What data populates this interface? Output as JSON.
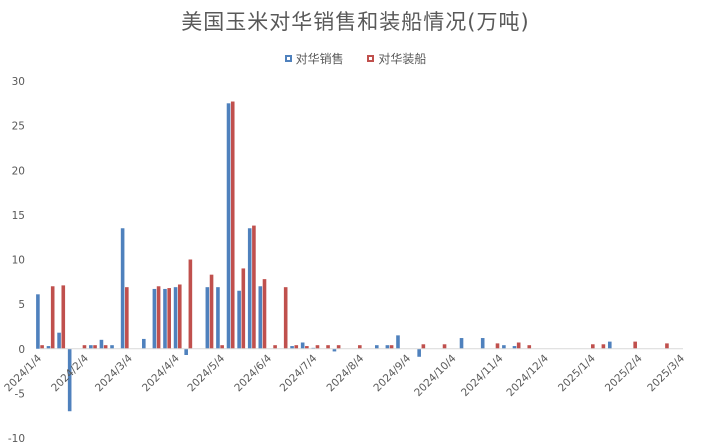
{
  "chart_data": {
    "type": "bar",
    "title": "美国玉米对华销售和装船情况(万吨)",
    "xlabel": "",
    "ylabel": "",
    "ylim": [
      -10,
      30
    ],
    "yticks": [
      -10,
      -5,
      0,
      5,
      10,
      15,
      20,
      25,
      30
    ],
    "xlim": [
      "2024-01-04",
      "2025-03-04"
    ],
    "xtick_labels": [
      "2024/1/4",
      "2024/2/4",
      "2024/3/4",
      "2024/4/4",
      "2024/5/4",
      "2024/6/4",
      "2024/7/4",
      "2024/8/4",
      "2024/9/4",
      "2024/10/4",
      "2024/11/4",
      "2024/12/4",
      "2025/1/4",
      "2025/2/4",
      "2025/3/4"
    ],
    "xtick_dates": [
      "2024-01-04",
      "2024-02-04",
      "2024-03-04",
      "2024-04-04",
      "2024-05-04",
      "2024-06-04",
      "2024-07-04",
      "2024-08-04",
      "2024-09-04",
      "2024-10-04",
      "2024-11-04",
      "2024-12-04",
      "2025-01-04",
      "2025-02-04",
      "2025-03-04"
    ],
    "grid": false,
    "legend_position": "top-center",
    "series": [
      {
        "name": "对华销售",
        "color": "#4F81BD",
        "points": [
          [
            "2024-01-04",
            6.1
          ],
          [
            "2024-01-11",
            0.3
          ],
          [
            "2024-01-18",
            1.8
          ],
          [
            "2024-01-25",
            -7.0
          ],
          [
            "2024-02-01",
            0.0
          ],
          [
            "2024-02-08",
            0.4
          ],
          [
            "2024-02-15",
            1.0
          ],
          [
            "2024-02-22",
            0.4
          ],
          [
            "2024-02-29",
            13.5
          ],
          [
            "2024-03-07",
            0.0
          ],
          [
            "2024-03-14",
            1.1
          ],
          [
            "2024-03-21",
            6.7
          ],
          [
            "2024-03-28",
            6.7
          ],
          [
            "2024-04-04",
            6.9
          ],
          [
            "2024-04-11",
            -0.7
          ],
          [
            "2024-04-18",
            0.0
          ],
          [
            "2024-04-25",
            6.9
          ],
          [
            "2024-05-02",
            6.9
          ],
          [
            "2024-05-09",
            27.5
          ],
          [
            "2024-05-16",
            6.5
          ],
          [
            "2024-05-23",
            13.5
          ],
          [
            "2024-05-30",
            7.0
          ],
          [
            "2024-06-06",
            0.0
          ],
          [
            "2024-06-13",
            0.0
          ],
          [
            "2024-06-20",
            0.3
          ],
          [
            "2024-06-27",
            0.7
          ],
          [
            "2024-07-04",
            0.1
          ],
          [
            "2024-07-11",
            0.0
          ],
          [
            "2024-07-18",
            -0.3
          ],
          [
            "2024-07-25",
            0.0
          ],
          [
            "2024-08-01",
            0.0
          ],
          [
            "2024-08-08",
            0.0
          ],
          [
            "2024-08-15",
            0.4
          ],
          [
            "2024-08-22",
            0.4
          ],
          [
            "2024-08-29",
            1.5
          ],
          [
            "2024-09-05",
            0.0
          ],
          [
            "2024-09-12",
            -0.9
          ],
          [
            "2024-09-19",
            0.0
          ],
          [
            "2024-09-26",
            0.0
          ],
          [
            "2024-10-03",
            0.0
          ],
          [
            "2024-10-10",
            1.2
          ],
          [
            "2024-10-17",
            0.0
          ],
          [
            "2024-10-24",
            1.2
          ],
          [
            "2024-10-31",
            0.0
          ],
          [
            "2024-11-07",
            0.4
          ],
          [
            "2024-11-14",
            0.3
          ],
          [
            "2024-11-21",
            0.0
          ],
          [
            "2024-11-28",
            0.0
          ],
          [
            "2024-12-05",
            0.0
          ],
          [
            "2024-12-12",
            0.0
          ],
          [
            "2024-12-19",
            0.0
          ],
          [
            "2024-12-26",
            0.0
          ],
          [
            "2025-01-02",
            0.0
          ],
          [
            "2025-01-09",
            0.0
          ],
          [
            "2025-01-16",
            0.8
          ],
          [
            "2025-01-23",
            0.0
          ],
          [
            "2025-01-30",
            0.0
          ],
          [
            "2025-02-06",
            0.0
          ],
          [
            "2025-02-13",
            0.0
          ],
          [
            "2025-02-20",
            0.0
          ]
        ]
      },
      {
        "name": "对华装船",
        "color": "#C0504D",
        "points": [
          [
            "2024-01-04",
            0.4
          ],
          [
            "2024-01-11",
            7.0
          ],
          [
            "2024-01-18",
            7.1
          ],
          [
            "2024-01-25",
            0.0
          ],
          [
            "2024-02-01",
            0.4
          ],
          [
            "2024-02-08",
            0.4
          ],
          [
            "2024-02-15",
            0.4
          ],
          [
            "2024-02-22",
            0.0
          ],
          [
            "2024-02-29",
            6.9
          ],
          [
            "2024-03-07",
            0.0
          ],
          [
            "2024-03-14",
            0.0
          ],
          [
            "2024-03-21",
            7.0
          ],
          [
            "2024-03-28",
            6.8
          ],
          [
            "2024-04-04",
            7.2
          ],
          [
            "2024-04-11",
            10.0
          ],
          [
            "2024-04-18",
            0.0
          ],
          [
            "2024-04-25",
            8.3
          ],
          [
            "2024-05-02",
            0.4
          ],
          [
            "2024-05-09",
            27.7
          ],
          [
            "2024-05-16",
            9.0
          ],
          [
            "2024-05-23",
            13.8
          ],
          [
            "2024-05-30",
            7.8
          ],
          [
            "2024-06-06",
            0.4
          ],
          [
            "2024-06-13",
            6.9
          ],
          [
            "2024-06-20",
            0.4
          ],
          [
            "2024-06-27",
            0.3
          ],
          [
            "2024-07-04",
            0.4
          ],
          [
            "2024-07-11",
            0.4
          ],
          [
            "2024-07-18",
            0.4
          ],
          [
            "2024-07-25",
            0.0
          ],
          [
            "2024-08-01",
            0.4
          ],
          [
            "2024-08-08",
            0.0
          ],
          [
            "2024-08-15",
            0.0
          ],
          [
            "2024-08-22",
            0.4
          ],
          [
            "2024-08-29",
            0.0
          ],
          [
            "2024-09-05",
            0.0
          ],
          [
            "2024-09-12",
            0.5
          ],
          [
            "2024-09-19",
            0.0
          ],
          [
            "2024-09-26",
            0.5
          ],
          [
            "2024-10-03",
            0.0
          ],
          [
            "2024-10-10",
            0.0
          ],
          [
            "2024-10-17",
            0.0
          ],
          [
            "2024-10-24",
            0.0
          ],
          [
            "2024-10-31",
            0.6
          ],
          [
            "2024-11-07",
            0.0
          ],
          [
            "2024-11-14",
            0.7
          ],
          [
            "2024-11-21",
            0.4
          ],
          [
            "2024-11-28",
            0.0
          ],
          [
            "2024-12-05",
            0.0
          ],
          [
            "2024-12-12",
            0.0
          ],
          [
            "2024-12-19",
            0.0
          ],
          [
            "2024-12-26",
            0.0
          ],
          [
            "2025-01-02",
            0.5
          ],
          [
            "2025-01-09",
            0.5
          ],
          [
            "2025-01-16",
            0.0
          ],
          [
            "2025-01-23",
            0.0
          ],
          [
            "2025-01-30",
            0.8
          ],
          [
            "2025-02-06",
            0.0
          ],
          [
            "2025-02-13",
            0.0
          ],
          [
            "2025-02-20",
            0.6
          ]
        ]
      }
    ]
  }
}
